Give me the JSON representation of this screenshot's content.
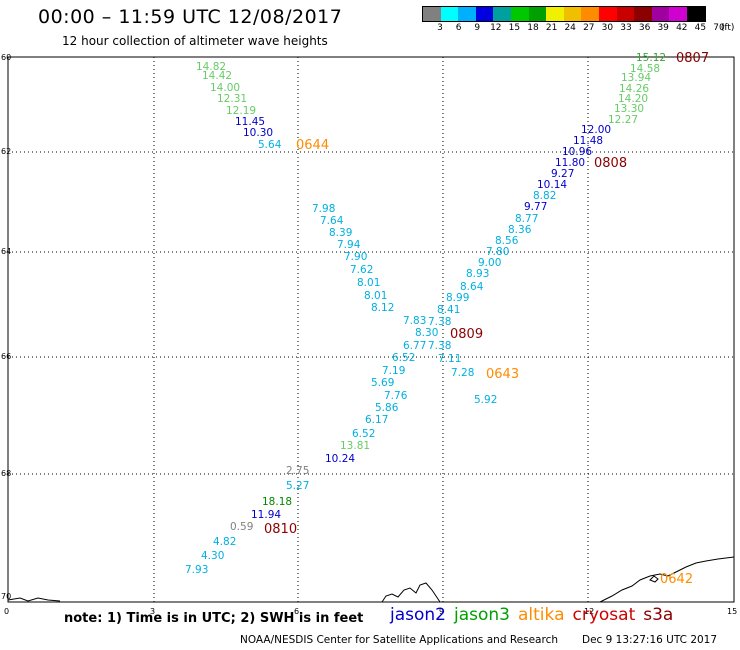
{
  "header": {
    "title": "00:00 – 11:59 UTC 12/08/2017",
    "subtitle": "12 hour collection of altimeter wave heights"
  },
  "scale": {
    "unit": "(ft)",
    "colors": [
      "#808080",
      "#00ffff",
      "#00b0ff",
      "#0000e0",
      "#00a0a0",
      "#00c800",
      "#00a000",
      "#f0f000",
      "#f0c000",
      "#ff8c00",
      "#ff0000",
      "#c80000",
      "#8c0000",
      "#a000a0",
      "#d000d0",
      "#000000"
    ],
    "labels": [
      "3",
      "6",
      "9",
      "12",
      "15",
      "18",
      "21",
      "24",
      "27",
      "30",
      "33",
      "36",
      "39",
      "42",
      "45",
      "70"
    ]
  },
  "map": {
    "lat_ticks": [
      "60",
      "62",
      "64",
      "66",
      "68",
      "70"
    ],
    "lon_ticks": [
      "0",
      "3",
      "6",
      "9",
      "12",
      "15"
    ],
    "grid": true
  },
  "passes": [
    {
      "label": "0644",
      "color": "#ff8c00"
    },
    {
      "label": "0807",
      "color": "#8c0000"
    },
    {
      "label": "0808",
      "color": "#8c0000"
    },
    {
      "label": "0809",
      "color": "#8c0000"
    },
    {
      "label": "0643",
      "color": "#ff8c00"
    },
    {
      "label": "0810",
      "color": "#8c0000"
    },
    {
      "label": "0642",
      "color": "#ff8c00"
    }
  ],
  "wave_heights": [
    {
      "v": "14.82",
      "c": "#66cc66"
    },
    {
      "v": "14.42",
      "c": "#66cc66"
    },
    {
      "v": "14.00",
      "c": "#66cc66"
    },
    {
      "v": "12.31",
      "c": "#66cc66"
    },
    {
      "v": "12.19",
      "c": "#66cc66"
    },
    {
      "v": "11.45",
      "c": "#0000cc"
    },
    {
      "v": "10.30",
      "c": "#0000cc"
    },
    {
      "v": "5.64",
      "c": "#00b0e0"
    },
    {
      "v": "15.12",
      "c": "#33aa33"
    },
    {
      "v": "14.58",
      "c": "#66cc66"
    },
    {
      "v": "13.94",
      "c": "#66cc66"
    },
    {
      "v": "14.26",
      "c": "#66cc66"
    },
    {
      "v": "14.20",
      "c": "#66cc66"
    },
    {
      "v": "13.30",
      "c": "#66cc66"
    },
    {
      "v": "12.27",
      "c": "#66cc66"
    },
    {
      "v": "12.00",
      "c": "#0000cc"
    },
    {
      "v": "11.48",
      "c": "#0000cc"
    },
    {
      "v": "10.96",
      "c": "#0000cc"
    },
    {
      "v": "11.80",
      "c": "#0000cc"
    },
    {
      "v": "9.27",
      "c": "#0000cc"
    },
    {
      "v": "10.14",
      "c": "#0000cc"
    },
    {
      "v": "8.82",
      "c": "#00b0e0"
    },
    {
      "v": "9.77",
      "c": "#0000cc"
    },
    {
      "v": "8.77",
      "c": "#00b0e0"
    },
    {
      "v": "8.36",
      "c": "#00b0e0"
    },
    {
      "v": "8.56",
      "c": "#00b0e0"
    },
    {
      "v": "7.80",
      "c": "#00b0e0"
    },
    {
      "v": "9.00",
      "c": "#00b0e0"
    },
    {
      "v": "8.93",
      "c": "#00b0e0"
    },
    {
      "v": "8.64",
      "c": "#00b0e0"
    },
    {
      "v": "8.99",
      "c": "#00b0e0"
    },
    {
      "v": "8.41",
      "c": "#00b0e0"
    },
    {
      "v": "7.38",
      "c": "#00b0e0"
    },
    {
      "v": "7.98",
      "c": "#00b0e0"
    },
    {
      "v": "7.64",
      "c": "#00b0e0"
    },
    {
      "v": "8.39",
      "c": "#00b0e0"
    },
    {
      "v": "7.94",
      "c": "#00b0e0"
    },
    {
      "v": "7.90",
      "c": "#00b0e0"
    },
    {
      "v": "7.62",
      "c": "#00b0e0"
    },
    {
      "v": "8.01",
      "c": "#00b0e0"
    },
    {
      "v": "8.01",
      "c": "#00b0e0"
    },
    {
      "v": "8.12",
      "c": "#00b0e0"
    },
    {
      "v": "7.83",
      "c": "#00b0e0"
    },
    {
      "v": "8.30",
      "c": "#00b0e0"
    },
    {
      "v": "6.77",
      "c": "#00b0e0"
    },
    {
      "v": "7.38",
      "c": "#00b0e0"
    },
    {
      "v": "6.52",
      "c": "#00b0e0"
    },
    {
      "v": "7.11",
      "c": "#00b0e0"
    },
    {
      "v": "7.28",
      "c": "#00b0e0"
    },
    {
      "v": "5.92",
      "c": "#00b0e0"
    },
    {
      "v": "7.19",
      "c": "#00b0e0"
    },
    {
      "v": "5.69",
      "c": "#00b0e0"
    },
    {
      "v": "7.76",
      "c": "#00b0e0"
    },
    {
      "v": "5.86",
      "c": "#00b0e0"
    },
    {
      "v": "6.17",
      "c": "#00b0e0"
    },
    {
      "v": "6.52",
      "c": "#00b0e0"
    },
    {
      "v": "13.81",
      "c": "#66cc66"
    },
    {
      "v": "10.24",
      "c": "#0000cc"
    },
    {
      "v": "2.75",
      "c": "#808080"
    },
    {
      "v": "5.27",
      "c": "#00b0e0"
    },
    {
      "v": "18.18",
      "c": "#008800"
    },
    {
      "v": "11.94",
      "c": "#0000cc"
    },
    {
      "v": "0.59",
      "c": "#808080"
    },
    {
      "v": "4.82",
      "c": "#00b0e0"
    },
    {
      "v": "4.30",
      "c": "#00b0e0"
    },
    {
      "v": "7.93",
      "c": "#00b0e0"
    }
  ],
  "footer": {
    "note": "note:  1) Time is in UTC;  2) SWH is in feet",
    "credit": "NOAA/NESDIS Center for Satellite Applications and Research",
    "timestamp": "Dec  9 13:27:16 UTC 2017"
  },
  "legend": [
    {
      "name": "jason2",
      "color": "#0000cc"
    },
    {
      "name": "jason3",
      "color": "#00a000"
    },
    {
      "name": "altika",
      "color": "#ff8c00"
    },
    {
      "name": "cryosat",
      "color": "#cc0000"
    },
    {
      "name": "s3a",
      "color": "#8c0000"
    }
  ]
}
